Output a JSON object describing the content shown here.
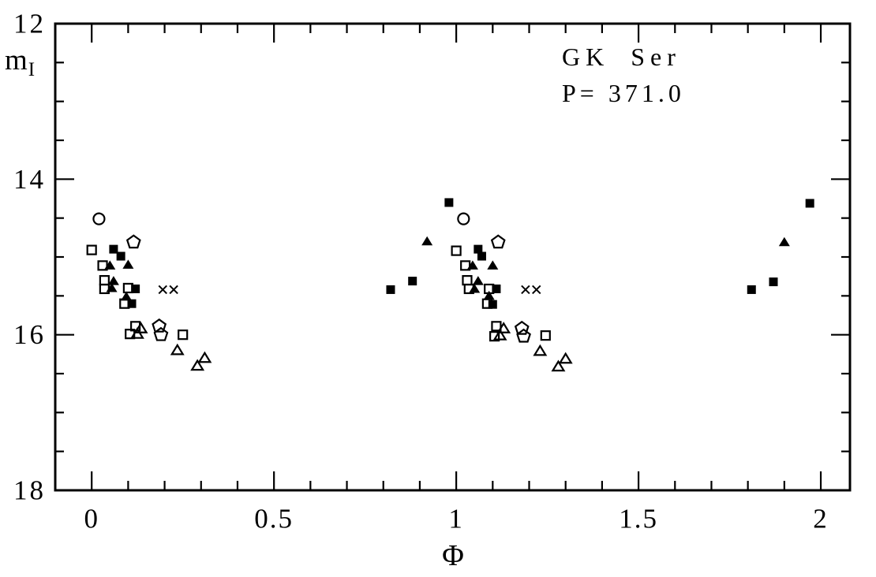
{
  "figure": {
    "background": "#ffffff",
    "ink": "#000000"
  },
  "chart_data": {
    "type": "scatter",
    "title": "GK Ser",
    "subtitle": "P= 371.0",
    "xlabel": "Φ",
    "ylabel_main": "m",
    "ylabel_sub": "I",
    "xlim": [
      -0.1,
      2.08
    ],
    "ylim": [
      12,
      18
    ],
    "y_axis_inverted_magnitudes": true,
    "grid": false,
    "legend": "none",
    "x_major_ticks": [
      0,
      0.5,
      1,
      1.5,
      2
    ],
    "x_major_tick_labels": [
      "0",
      "0.5",
      "1",
      "1.5",
      "2"
    ],
    "x_minor_tick_step": 0.1,
    "y_major_ticks": [
      12,
      14,
      16,
      18
    ],
    "y_major_tick_labels": [
      "12",
      "14",
      "16",
      "18"
    ],
    "y_minor_tick_step": 0.5,
    "series": [
      {
        "name": "filled-square",
        "marker": "filled-square",
        "points": [
          [
            0.06,
            14.9
          ],
          [
            0.08,
            14.99
          ],
          [
            0.12,
            15.41
          ],
          [
            0.11,
            15.6
          ],
          [
            0.82,
            15.42
          ],
          [
            0.88,
            15.31
          ],
          [
            0.98,
            14.3
          ],
          [
            1.06,
            14.9
          ],
          [
            1.07,
            14.99
          ],
          [
            1.11,
            15.41
          ],
          [
            1.1,
            15.61
          ],
          [
            1.81,
            15.42
          ],
          [
            1.87,
            15.32
          ],
          [
            1.97,
            14.31
          ]
        ]
      },
      {
        "name": "filled-triangle",
        "marker": "filled-triangle",
        "points": [
          [
            0.05,
            15.11
          ],
          [
            0.1,
            15.1
          ],
          [
            0.06,
            15.31
          ],
          [
            0.055,
            15.4
          ],
          [
            0.095,
            15.51
          ],
          [
            0.92,
            14.8
          ],
          [
            1.045,
            15.11
          ],
          [
            1.1,
            15.11
          ],
          [
            1.06,
            15.31
          ],
          [
            1.05,
            15.41
          ],
          [
            1.09,
            15.5
          ],
          [
            1.9,
            14.81
          ]
        ]
      },
      {
        "name": "open-square",
        "marker": "open-square",
        "points": [
          [
            0.0,
            14.91
          ],
          [
            0.03,
            15.11
          ],
          [
            0.035,
            15.3
          ],
          [
            0.035,
            15.41
          ],
          [
            0.1,
            15.4
          ],
          [
            0.09,
            15.6
          ],
          [
            0.12,
            15.89
          ],
          [
            0.105,
            15.99
          ],
          [
            0.25,
            16.0
          ],
          [
            1.0,
            14.92
          ],
          [
            1.025,
            15.11
          ],
          [
            1.03,
            15.3
          ],
          [
            1.035,
            15.41
          ],
          [
            1.09,
            15.41
          ],
          [
            1.085,
            15.6
          ],
          [
            1.11,
            15.89
          ],
          [
            1.105,
            16.02
          ],
          [
            1.245,
            16.01
          ]
        ]
      },
      {
        "name": "open-triangle",
        "marker": "open-triangle",
        "points": [
          [
            0.135,
            15.92
          ],
          [
            0.125,
            15.99
          ],
          [
            0.235,
            16.2
          ],
          [
            0.31,
            16.3
          ],
          [
            0.29,
            16.4
          ],
          [
            1.13,
            15.92
          ],
          [
            1.12,
            16.01
          ],
          [
            1.23,
            16.21
          ],
          [
            1.3,
            16.31
          ],
          [
            1.28,
            16.41
          ]
        ]
      },
      {
        "name": "open-circle",
        "marker": "open-circle",
        "points": [
          [
            0.02,
            14.51
          ],
          [
            1.02,
            14.51
          ]
        ]
      },
      {
        "name": "open-pentagon",
        "marker": "open-pentagon",
        "points": [
          [
            0.115,
            14.81
          ],
          [
            0.185,
            15.89
          ],
          [
            0.19,
            16.0
          ],
          [
            1.115,
            14.81
          ],
          [
            1.18,
            15.92
          ],
          [
            1.185,
            16.02
          ]
        ]
      },
      {
        "name": "cross",
        "marker": "cross",
        "points": [
          [
            0.195,
            15.42
          ],
          [
            0.225,
            15.42
          ],
          [
            1.19,
            15.42
          ],
          [
            1.22,
            15.42
          ]
        ]
      }
    ]
  }
}
